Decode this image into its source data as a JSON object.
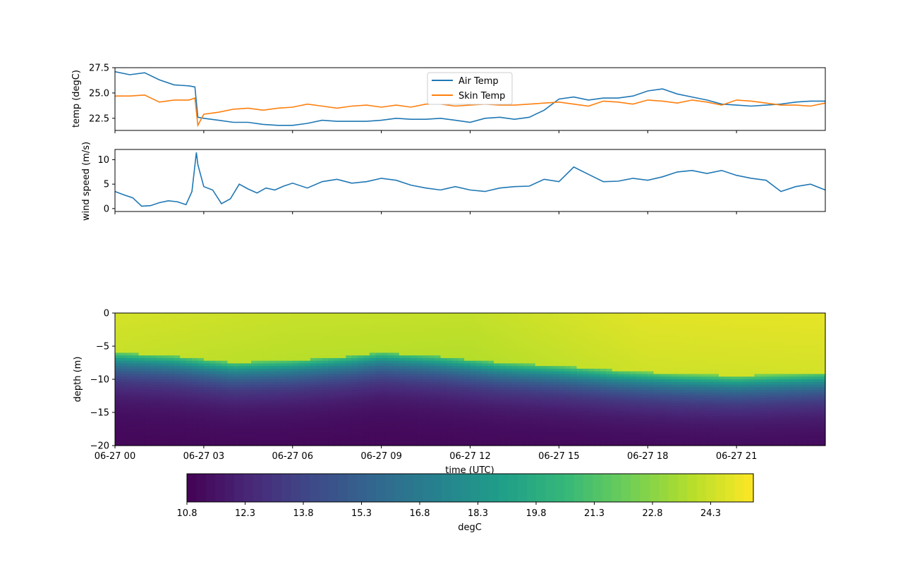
{
  "chart_data": [
    {
      "type": "line",
      "ylabel": "temp (degC)",
      "ylim": [
        21.3,
        27.5
      ],
      "xlim_hours": [
        0,
        24
      ],
      "yticks": [
        22.5,
        25.0,
        27.5
      ],
      "ytick_labels": [
        "22.5",
        "25.0",
        "27.5"
      ],
      "legend_position": "upper center",
      "series": [
        {
          "name": "Air Temp",
          "color": "#1f77b4",
          "x_hours": [
            0,
            0.5,
            1.0,
            1.5,
            2.0,
            2.5,
            2.7,
            2.8,
            3.0,
            3.5,
            4.0,
            4.5,
            5.0,
            5.5,
            6.0,
            6.5,
            7.0,
            7.5,
            8.0,
            8.5,
            9.0,
            9.5,
            10.0,
            10.5,
            11.0,
            11.5,
            12.0,
            12.5,
            13.0,
            13.5,
            14.0,
            14.5,
            15.0,
            15.5,
            16.0,
            16.5,
            17.0,
            17.5,
            18.0,
            18.5,
            19.0,
            19.5,
            20.0,
            20.5,
            21.0,
            21.5,
            22.0,
            22.5,
            23.0,
            23.5,
            24.0
          ],
          "values": [
            27.1,
            26.8,
            27.0,
            26.3,
            25.8,
            25.7,
            25.6,
            22.6,
            22.5,
            22.3,
            22.1,
            22.1,
            21.9,
            21.8,
            21.8,
            22.0,
            22.3,
            22.2,
            22.2,
            22.2,
            22.3,
            22.5,
            22.4,
            22.4,
            22.5,
            22.3,
            22.1,
            22.5,
            22.6,
            22.4,
            22.6,
            23.3,
            24.4,
            24.6,
            24.3,
            24.5,
            24.5,
            24.7,
            25.2,
            25.4,
            24.9,
            24.6,
            24.3,
            23.9,
            23.8,
            23.7,
            23.8,
            23.9,
            24.1,
            24.2,
            24.2
          ]
        },
        {
          "name": "Skin Temp",
          "color": "#ff7f0e",
          "x_hours": [
            0,
            0.5,
            1.0,
            1.5,
            2.0,
            2.5,
            2.7,
            2.8,
            3.0,
            3.5,
            4.0,
            4.5,
            5.0,
            5.5,
            6.0,
            6.5,
            7.0,
            7.5,
            8.0,
            8.5,
            9.0,
            9.5,
            10.0,
            10.5,
            11.0,
            11.5,
            12.0,
            12.5,
            13.0,
            13.5,
            14.0,
            14.5,
            15.0,
            15.5,
            16.0,
            16.5,
            17.0,
            17.5,
            18.0,
            18.5,
            19.0,
            19.5,
            20.0,
            20.5,
            21.0,
            21.5,
            22.0,
            22.5,
            23.0,
            23.5,
            24.0
          ],
          "values": [
            24.7,
            24.7,
            24.8,
            24.1,
            24.3,
            24.3,
            24.5,
            21.8,
            22.9,
            23.1,
            23.4,
            23.5,
            23.3,
            23.5,
            23.6,
            23.9,
            23.7,
            23.5,
            23.7,
            23.8,
            23.6,
            23.8,
            23.6,
            23.9,
            23.9,
            23.7,
            23.8,
            23.9,
            23.8,
            23.8,
            23.9,
            24.0,
            24.1,
            23.9,
            23.7,
            24.2,
            24.1,
            23.9,
            24.3,
            24.2,
            24.0,
            24.3,
            24.1,
            23.8,
            24.3,
            24.2,
            24.0,
            23.8,
            23.8,
            23.7,
            24.0
          ]
        }
      ]
    },
    {
      "type": "line",
      "ylabel": "wind speed (m/s)",
      "ylim": [
        -0.6,
        12.1
      ],
      "xlim_hours": [
        0,
        24
      ],
      "yticks": [
        0,
        5,
        10
      ],
      "ytick_labels": [
        "0",
        "5",
        "10"
      ],
      "series": [
        {
          "name": "",
          "color": "#1f77b4",
          "x_hours": [
            0,
            0.3,
            0.6,
            0.9,
            1.2,
            1.5,
            1.8,
            2.1,
            2.4,
            2.6,
            2.75,
            2.8,
            3.0,
            3.3,
            3.6,
            3.9,
            4.2,
            4.5,
            4.8,
            5.1,
            5.4,
            5.7,
            6.0,
            6.5,
            7.0,
            7.5,
            8.0,
            8.5,
            9.0,
            9.5,
            10.0,
            10.5,
            11.0,
            11.5,
            12.0,
            12.5,
            13.0,
            13.5,
            14.0,
            14.5,
            15.0,
            15.5,
            16.0,
            16.5,
            17.0,
            17.5,
            18.0,
            18.5,
            19.0,
            19.5,
            20.0,
            20.5,
            21.0,
            21.5,
            22.0,
            22.5,
            23.0,
            23.5,
            24.0
          ],
          "values": [
            3.5,
            2.8,
            2.2,
            0.5,
            0.6,
            1.2,
            1.6,
            1.4,
            0.8,
            3.5,
            11.5,
            9.0,
            4.5,
            3.8,
            1.0,
            2.0,
            5.0,
            4.0,
            3.2,
            4.2,
            3.8,
            4.6,
            5.2,
            4.2,
            5.5,
            6.0,
            5.2,
            5.5,
            6.2,
            5.8,
            4.8,
            4.2,
            3.8,
            4.5,
            3.8,
            3.5,
            4.2,
            4.5,
            4.6,
            6.0,
            5.5,
            8.5,
            7.0,
            5.5,
            5.6,
            6.2,
            5.8,
            6.5,
            7.5,
            7.8,
            7.2,
            7.8,
            6.8,
            6.2,
            5.8,
            3.5,
            4.5,
            5.0,
            3.8
          ]
        }
      ]
    },
    {
      "type": "heatmap",
      "ylabel": "depth (m)",
      "xlabel": "time (UTC)",
      "ylim": [
        -20,
        0
      ],
      "xlim_hours": [
        0,
        24
      ],
      "yticks": [
        0,
        -5,
        -10,
        -15,
        -20
      ],
      "ytick_labels": [
        "0",
        "−5",
        "−10",
        "−15",
        "−20"
      ],
      "xtick_hours": [
        0,
        3,
        6,
        9,
        12,
        15,
        18,
        21
      ],
      "xtick_labels": [
        "06-27 00",
        "06-27 03",
        "06-27 06",
        "06-27 09",
        "06-27 12",
        "06-27 15",
        "06-27 18",
        "06-27 21"
      ],
      "thermocline_depth_m": {
        "x_hours": [
          0,
          2,
          4,
          6,
          8,
          9,
          11,
          13,
          15,
          17,
          19,
          21,
          23,
          24
        ],
        "values": [
          -6.0,
          -6.5,
          -7.5,
          -7.2,
          -6.5,
          -6.0,
          -6.6,
          -7.5,
          -8.0,
          -8.7,
          -9.2,
          -9.5,
          -9.2,
          -9.0
        ]
      },
      "surface_temp_degC": {
        "x_hours": [
          0,
          6,
          12,
          18,
          24
        ],
        "values": [
          24.5,
          24.2,
          24.1,
          24.8,
          24.9
        ]
      },
      "bottom_temp_degC": 11.0,
      "colorbar": {
        "label": "degC",
        "vmin": 10.8,
        "vmax": 25.4,
        "ticks": [
          10.8,
          12.3,
          13.8,
          15.3,
          16.8,
          18.3,
          19.8,
          21.3,
          22.8,
          24.3
        ],
        "tick_labels": [
          "10.8",
          "12.3",
          "13.8",
          "15.3",
          "16.8",
          "18.3",
          "19.8",
          "21.3",
          "22.8",
          "24.3"
        ],
        "colormap": "viridis"
      }
    }
  ]
}
